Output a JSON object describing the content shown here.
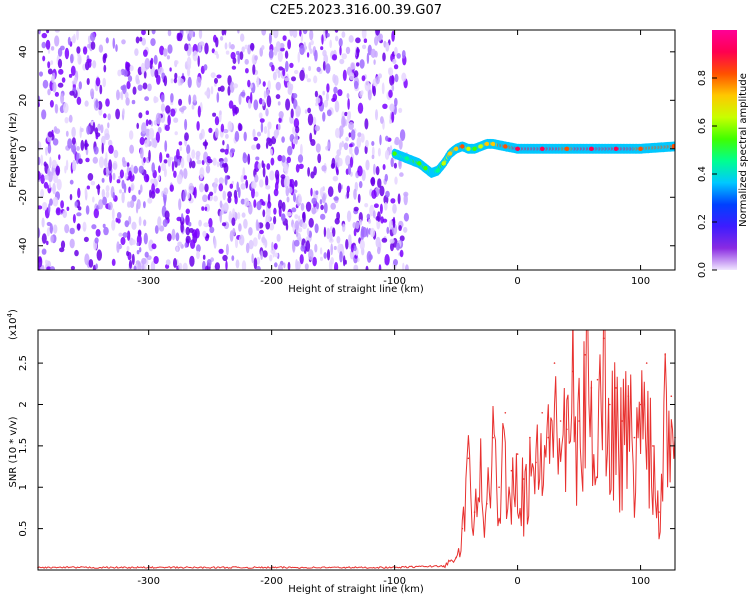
{
  "figure": {
    "title": "C2E5.2023.316.00.39.G07"
  },
  "colors": {
    "background": "#ffffff",
    "snr_line": "#e8312f",
    "noise_scatter": "#7a00ff",
    "colormap": [
      "#f0e6ff",
      "#8a2be2",
      "#3d1cff",
      "#0040ff",
      "#00c8ff",
      "#00ff90",
      "#40ff00",
      "#c8ff00",
      "#ffc800",
      "#ff5000",
      "#ff0050",
      "#ff0096"
    ]
  },
  "chart_data": [
    {
      "type": "heatmap",
      "title": "C2E5.2023.316.00.39.G07",
      "xlabel": "Height of straight line (km)",
      "ylabel": "Frequency (Hz)",
      "xlim": [
        -390,
        128
      ],
      "ylim": [
        -50,
        49
      ],
      "x_ticks": [
        -300,
        -200,
        -100,
        0,
        100
      ],
      "y_ticks": [
        -40,
        -20,
        0,
        20,
        40
      ],
      "colorbar": {
        "label": "Normalized spectral amplitude",
        "range": [
          0,
          1
        ],
        "ticks": [
          0.0,
          0.2,
          0.4,
          0.6,
          0.8
        ]
      },
      "noise_region": {
        "x_range": [
          -390,
          -90
        ],
        "y_range": [
          -50,
          49
        ],
        "amplitude": 0.12
      },
      "signal_trace": {
        "x": [
          -100,
          -90,
          -80,
          -75,
          -70,
          -65,
          -60,
          -55,
          -50,
          -45,
          -40,
          -35,
          -30,
          -25,
          -20,
          -10,
          0,
          20,
          40,
          60,
          80,
          100,
          128
        ],
        "frequency": [
          -2,
          -4,
          -6,
          -8,
          -10,
          -9,
          -6,
          -2,
          0,
          1,
          0,
          0,
          1,
          2,
          2,
          1,
          0,
          0,
          0,
          0,
          0,
          0,
          1
        ],
        "amplitude": [
          0.5,
          0.45,
          0.55,
          0.5,
          0.4,
          0.45,
          0.6,
          0.7,
          0.75,
          0.8,
          0.6,
          0.55,
          0.6,
          0.7,
          0.75,
          0.8,
          0.9,
          0.9,
          0.85,
          0.9,
          0.9,
          0.85,
          0.8
        ]
      }
    },
    {
      "type": "line",
      "xlabel": "Height of straight line (km)",
      "ylabel": "SNR (10 * v/v)",
      "y_multiplier_label": "(x10",
      "y_multiplier_exponent": "4",
      "xlim": [
        -390,
        128
      ],
      "ylim": [
        0,
        2.9
      ],
      "x_ticks": [
        -300,
        -200,
        -100,
        0,
        100
      ],
      "y_ticks": [
        0.5,
        1.0,
        1.5,
        2.0,
        2.5
      ],
      "series": [
        {
          "x": [
            -390,
            -100,
            -60,
            -50,
            -45,
            -40,
            -35,
            -30,
            -25,
            -20,
            -15,
            -10,
            -5,
            0,
            5,
            10,
            15,
            20,
            25,
            30,
            35,
            40,
            45,
            50,
            55,
            60,
            65,
            70,
            75,
            80,
            85,
            90,
            95,
            100,
            105,
            110,
            115,
            120,
            125,
            128
          ],
          "y": [
            0.03,
            0.03,
            0.05,
            0.15,
            0.5,
            1.35,
            0.7,
            1.3,
            0.8,
            1.6,
            1.0,
            1.9,
            1.2,
            1.4,
            1.1,
            1.6,
            1.3,
            1.9,
            1.6,
            2.5,
            1.8,
            1.7,
            2.4,
            1.8,
            2.6,
            2.2,
            2.3,
            2.8,
            2.0,
            2.2,
            1.8,
            2.1,
            1.6,
            2.0,
            2.5,
            1.5,
            0.7,
            2.6,
            2.1,
            1.6
          ]
        }
      ]
    }
  ]
}
